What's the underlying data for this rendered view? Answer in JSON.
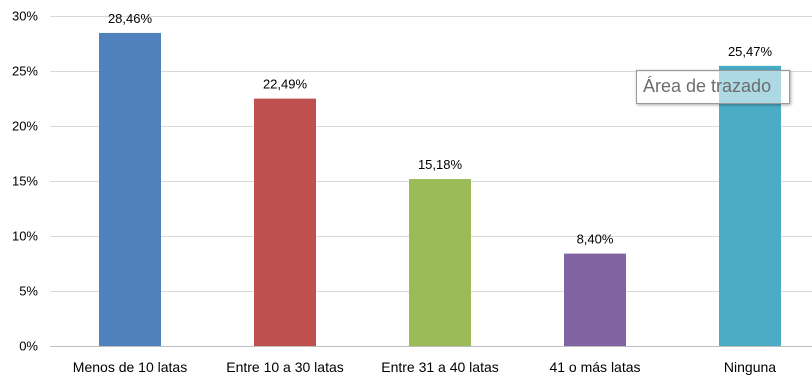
{
  "chart_data": {
    "type": "bar",
    "title": "",
    "xlabel": "",
    "ylabel": "",
    "categories": [
      "Menos de 10 latas",
      "Entre 10 a 30 latas",
      "Entre 31 a 40 latas",
      "41 o más latas",
      "Ninguna"
    ],
    "values": [
      28.46,
      22.49,
      15.18,
      8.4,
      25.47
    ],
    "value_labels": [
      "28,46%",
      "22,49%",
      "15,18%",
      "8,40%",
      "25,47%"
    ],
    "colors": [
      "#4f81bd",
      "#c0504d",
      "#9bbb59",
      "#8064a2",
      "#4bacc6"
    ],
    "ylim": [
      0,
      30
    ],
    "yticks": [
      0,
      5,
      10,
      15,
      20,
      25,
      30
    ],
    "ytick_labels": [
      "0%",
      "5%",
      "10%",
      "15%",
      "20%",
      "25%",
      "30%"
    ],
    "grid": true,
    "legend": "none"
  },
  "tooltip": {
    "text": "Área de trazado"
  }
}
